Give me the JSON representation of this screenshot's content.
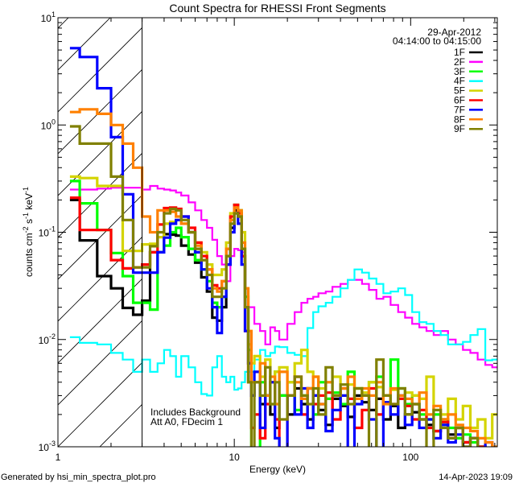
{
  "chart_data": {
    "type": "line",
    "title": "Count Spectra for RHESSI Front Segments",
    "xlabel": "Energy (keV)",
    "ylabel": {
      "base": "counts cm",
      "e1": "-2",
      "mid": " s",
      "e2": "-1",
      "mid2": " keV",
      "e3": "-1"
    },
    "xscale": "log",
    "yscale": "log",
    "xlim": [
      1,
      310
    ],
    "ylim": [
      0.001,
      10
    ],
    "x_ticks": [
      {
        "value": 1,
        "label": "1"
      },
      {
        "value": 10,
        "label": "10"
      },
      {
        "value": 100,
        "label": "100"
      }
    ],
    "y_ticks": [
      {
        "value": 10,
        "base": "10",
        "exp": "1"
      },
      {
        "value": 1,
        "base": "10",
        "exp": "0"
      },
      {
        "value": 0.1,
        "base": "10",
        "exp": "-1"
      },
      {
        "value": 0.01,
        "base": "10",
        "exp": "-2"
      },
      {
        "value": 0.001,
        "base": "10",
        "exp": "-3"
      }
    ],
    "legend": {
      "position": "top-right",
      "date": "29-Apr-2012",
      "time_range": "04:14:00 to 04:15:00"
    },
    "shaded_region": {
      "from": 1,
      "to": 3,
      "style": "hatched"
    },
    "annotations": [
      "Includes Background",
      "Att A0, FDecim 1"
    ],
    "energy_edges": [
      1.17,
      1.33,
      1.67,
      2.0,
      2.33,
      2.67,
      3.0,
      3.33,
      3.67,
      4.0,
      4.33,
      4.67,
      5.0,
      5.5,
      6.0,
      6.5,
      7.0,
      7.5,
      8.0,
      8.5,
      9.0,
      9.5,
      10,
      10.5,
      11,
      11.5,
      12,
      12.5,
      13,
      14,
      15,
      16,
      17,
      18,
      20,
      22,
      24,
      26,
      28,
      30,
      33,
      36,
      40,
      44,
      48,
      53,
      58,
      64,
      70,
      77,
      85,
      93,
      102,
      112,
      123,
      135,
      148,
      163,
      180,
      198,
      218,
      240,
      265,
      290,
      310
    ],
    "series": [
      {
        "name": "1F",
        "color": "#000000",
        "values": [
          0.2,
          0.084,
          0.039,
          0.03,
          0.0197,
          0.017,
          0.023,
          0.065,
          0.065,
          0.096,
          0.095,
          0.093,
          0.075,
          0.062,
          0.052,
          0.038,
          0.028,
          0.016,
          0.015,
          0.02,
          0.05,
          0.11,
          0.16,
          0.14,
          0.06,
          0.02,
          0.006,
          0.003,
          0.004,
          0.0025,
          0.003,
          0.002,
          0.0015,
          0.003,
          0.002,
          0.0035,
          0.0025,
          0.0018,
          0.003,
          0.0022,
          0.0016,
          0.0028,
          0.0024,
          0.0019,
          0.003,
          0.0026,
          0.0022,
          0.0028,
          0.0018,
          0.0024,
          0.0015,
          0.002,
          0.0021,
          0.0018,
          0.0016,
          0.0014,
          0.0018,
          0.0013,
          0.0015,
          0.0011,
          0.0012,
          0.001,
          0.0009,
          0.0008
        ]
      },
      {
        "name": "2F",
        "color": "#ff00ff",
        "values": [
          0.25,
          0.25,
          0.255,
          0.26,
          0.26,
          0.26,
          0.25,
          0.27,
          0.255,
          0.25,
          0.245,
          0.235,
          0.22,
          0.19,
          0.16,
          0.13,
          0.11,
          0.085,
          0.06,
          0.05,
          0.035,
          0.06,
          0.07,
          0.068,
          0.065,
          0.03,
          0.02,
          0.02,
          0.014,
          0.012,
          0.009,
          0.013,
          0.012,
          0.01,
          0.014,
          0.018,
          0.022,
          0.024,
          0.025,
          0.027,
          0.028,
          0.031,
          0.033,
          0.036,
          0.036,
          0.033,
          0.029,
          0.024,
          0.025,
          0.021,
          0.018,
          0.016,
          0.014,
          0.013,
          0.012,
          0.011,
          0.012,
          0.01,
          0.009,
          0.008,
          0.0075,
          0.0065,
          0.0058,
          0.0055
        ]
      },
      {
        "name": "3F",
        "color": "#00ff00",
        "values": [
          0.3,
          0.186,
          0.105,
          0.064,
          0.039,
          0.022,
          0.022,
          0.019,
          0.065,
          0.075,
          0.1,
          0.11,
          0.09,
          0.07,
          0.055,
          0.045,
          0.035,
          0.022,
          0.02,
          0.025,
          0.06,
          0.13,
          0.18,
          0.16,
          0.07,
          0.025,
          0.008,
          0.0009,
          0.0007,
          0.004,
          0.003,
          0.0025,
          0.005,
          0.003,
          0.004,
          0.0022,
          0.003,
          0.0035,
          0.002,
          0.004,
          0.0028,
          0.0032,
          0.0025,
          0.005,
          0.0035,
          0.003,
          0.004,
          0.0045,
          0.003,
          0.0065,
          0.0035,
          0.0025,
          0.003,
          0.002,
          0.0018,
          0.002,
          0.0016,
          0.0015,
          0.0012,
          0.0013,
          0.0011,
          0.001,
          0.0009,
          0.0009
        ]
      },
      {
        "name": "4F",
        "color": "#00ffff",
        "values": [
          0.0105,
          0.0093,
          0.009,
          0.0075,
          0.0065,
          0.005,
          0.0065,
          0.005,
          0.006,
          0.008,
          0.007,
          0.0045,
          0.007,
          0.0055,
          0.004,
          0.0031,
          0.003,
          0.0055,
          0.007,
          0.0045,
          0.004,
          0.0045,
          0.0034,
          0.0035,
          0.004,
          0.005,
          0.005,
          0.005,
          0.0065,
          0.008,
          0.007,
          0.0075,
          0.0086,
          0.0085,
          0.0075,
          0.0072,
          0.007,
          0.0128,
          0.018,
          0.0204,
          0.022,
          0.025,
          0.03,
          0.036,
          0.045,
          0.042,
          0.037,
          0.033,
          0.027,
          0.028,
          0.03,
          0.026,
          0.018,
          0.0145,
          0.014,
          0.012,
          0.011,
          0.009,
          0.009,
          0.0095,
          0.011,
          0.0125,
          0.0064,
          0.0065
        ]
      },
      {
        "name": "5F",
        "color": "#d4d400",
        "values": [
          0.33,
          0.32,
          0.27,
          0.27,
          0.067,
          0.067,
          0.077,
          0.078,
          0.09,
          0.12,
          0.125,
          0.13,
          0.12,
          0.1,
          0.08,
          0.065,
          0.05,
          0.04,
          0.04,
          0.045,
          0.08,
          0.15,
          0.17,
          0.16,
          0.1,
          0.03,
          0.009,
          0.006,
          0.007,
          0.0045,
          0.0065,
          0.004,
          0.005,
          0.0055,
          0.004,
          0.006,
          0.008,
          0.005,
          0.0045,
          0.0035,
          0.004,
          0.0045,
          0.003,
          0.0038,
          0.0035,
          0.0032,
          0.004,
          0.0036,
          0.003,
          0.0034,
          0.0028,
          0.0032,
          0.003,
          0.0028,
          0.0045,
          0.0022,
          0.002,
          0.0028,
          0.0018,
          0.0024,
          0.0015,
          0.0018,
          0.0012,
          0.002
        ]
      },
      {
        "name": "6F",
        "color": "#ff0000",
        "values": [
          0.21,
          0.105,
          0.105,
          0.055,
          0.046,
          0.047,
          0.05,
          0.065,
          0.118,
          0.168,
          0.17,
          0.165,
          0.14,
          0.11,
          0.08,
          0.06,
          0.045,
          0.032,
          0.03,
          0.035,
          0.07,
          0.14,
          0.18,
          0.15,
          0.06,
          0.012,
          0.004,
          0.0015,
          0.002,
          0.0012,
          0.0025,
          0.004,
          0.0018,
          0.0008,
          0.003,
          0.0045,
          0.002,
          0.0035,
          0.0025,
          0.003,
          0.0032,
          0.0018,
          0.0035,
          0.0028,
          0.0015,
          0.0022,
          0.0035,
          0.002,
          0.003,
          0.0025,
          0.0028,
          0.0024,
          0.0018,
          0.0022,
          0.0015,
          0.0014,
          0.0017,
          0.0012,
          0.0015,
          0.0011,
          0.0012,
          0.001,
          0.0009,
          0.0008
        ]
      },
      {
        "name": "7F",
        "color": "#0000ff",
        "values": [
          5.2,
          4.3,
          2.2,
          0.77,
          0.226,
          0.042,
          0.042,
          0.042,
          0.065,
          0.089,
          0.12,
          0.13,
          0.14,
          0.1,
          0.065,
          0.045,
          0.03,
          0.02,
          0.0115,
          0.025,
          0.05,
          0.1,
          0.15,
          0.12,
          0.05,
          0.012,
          0.006,
          0.003,
          0.005,
          0.0015,
          0.003,
          0.004,
          0.0012,
          0.0006,
          0.003,
          0.002,
          0.0035,
          0.0015,
          0.003,
          0.0025,
          0.0014,
          0.0022,
          0.003,
          0.0008,
          0.0025,
          0.003,
          0.0018,
          0.0007,
          0.0026,
          0.002,
          0.003,
          0.0016,
          0.0025,
          0.0015,
          0.0018,
          0.0012,
          0.0016,
          0.0011,
          0.0013,
          0.001,
          0.0012,
          0.0009,
          0.0011,
          0.0008
        ]
      },
      {
        "name": "8F",
        "color": "#ff8000",
        "values": [
          1.32,
          1.4,
          1.27,
          1.0,
          0.67,
          0.4,
          0.14,
          0.1,
          0.16,
          0.16,
          0.155,
          0.14,
          0.12,
          0.1,
          0.075,
          0.055,
          0.045,
          0.03,
          0.028,
          0.035,
          0.07,
          0.13,
          0.17,
          0.16,
          0.08,
          0.03,
          0.012,
          0.004,
          0.004,
          0.006,
          0.003,
          0.0045,
          0.0025,
          0.005,
          0.003,
          0.004,
          0.0028,
          0.0035,
          0.0045,
          0.0025,
          0.004,
          0.003,
          0.0035,
          0.0045,
          0.0028,
          0.0035,
          0.003,
          0.004,
          0.0025,
          0.0035,
          0.003,
          0.0028,
          0.0025,
          0.0032,
          0.002,
          0.0024,
          0.0018,
          0.002,
          0.0016,
          0.0015,
          0.0014,
          0.0012,
          0.0011,
          0.001
        ]
      },
      {
        "name": "9F",
        "color": "#808000",
        "values": [
          0.97,
          0.67,
          0.67,
          0.33,
          0.13,
          0.047,
          0.047,
          0.074,
          0.1,
          0.15,
          0.165,
          0.16,
          0.13,
          0.1,
          0.07,
          0.055,
          0.04,
          0.025,
          0.025,
          0.03,
          0.06,
          0.12,
          0.15,
          0.14,
          0.07,
          0.02,
          0.004,
          0.0006,
          0.004,
          0.003,
          0.0055,
          0.0025,
          0.004,
          0.0018,
          0.003,
          0.0045,
          0.003,
          0.0025,
          0.0035,
          0.002,
          0.0055,
          0.003,
          0.0038,
          0.0025,
          0.0035,
          0.003,
          0.0008,
          0.0065,
          0.003,
          0.0025,
          0.0035,
          0.002,
          0.0025,
          0.0018,
          0.0008,
          0.0022,
          0.0015,
          0.0012,
          0.0015,
          0.001,
          0.0012,
          0.0009,
          0.0008,
          0.0007
        ]
      }
    ]
  },
  "footer": {
    "generated_by": "Generated by hsi_min_spectra_plot.pro",
    "timestamp": "14-Apr-2023 19:09"
  }
}
